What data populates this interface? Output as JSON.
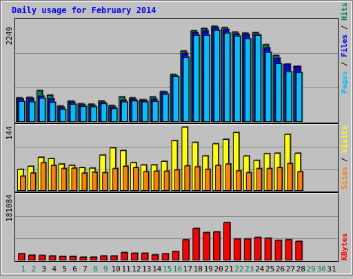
{
  "chart_data": [
    {
      "type": "bar",
      "title": "Daily usage for February 2014",
      "ymax_label": "2249",
      "series": [
        {
          "name": "Hits",
          "color": "#00805c"
        },
        {
          "name": "Files",
          "color": "#0000ff"
        },
        {
          "name": "Pages",
          "color": "#00c0ff"
        }
      ],
      "categories": [
        "1",
        "2",
        "3",
        "4",
        "5",
        "6",
        "7",
        "8",
        "9",
        "10",
        "11",
        "12",
        "13",
        "14",
        "15",
        "16",
        "17",
        "18",
        "19",
        "20",
        "21",
        "22",
        "23",
        "24",
        "25",
        "26",
        "27",
        "28"
      ],
      "hits": [
        540,
        550,
        700,
        600,
        360,
        470,
        410,
        400,
        470,
        370,
        560,
        540,
        500,
        560,
        680,
        1060,
        1580,
        2030,
        2080,
        2130,
        2100,
        2000,
        1980,
        1990,
        1720,
        1480,
        1280,
        1240
      ],
      "files": [
        520,
        530,
        580,
        520,
        330,
        450,
        390,
        370,
        440,
        340,
        490,
        510,
        490,
        510,
        670,
        1030,
        1530,
        1990,
        2030,
        2100,
        2060,
        1960,
        1950,
        1950,
        1650,
        1420,
        1290,
        1240
      ],
      "pages": [
        460,
        450,
        530,
        440,
        280,
        400,
        350,
        340,
        410,
        300,
        450,
        470,
        450,
        460,
        620,
        1010,
        1440,
        1930,
        1930,
        2040,
        1980,
        1910,
        1850,
        1930,
        1550,
        1300,
        1120,
        1100
      ]
    },
    {
      "type": "bar",
      "ymax_label": "144",
      "series": [
        {
          "name": "Visits",
          "color": "#ffff00"
        },
        {
          "name": "Sites",
          "color": "#ff8000"
        }
      ],
      "categories": [
        "1",
        "2",
        "3",
        "4",
        "5",
        "6",
        "7",
        "8",
        "9",
        "10",
        "11",
        "12",
        "13",
        "14",
        "15",
        "16",
        "17",
        "18",
        "19",
        "20",
        "21",
        "22",
        "23",
        "24",
        "25",
        "26",
        "27",
        "28"
      ],
      "visits": [
        48,
        55,
        75,
        72,
        60,
        57,
        52,
        51,
        80,
        96,
        90,
        63,
        58,
        58,
        66,
        112,
        142,
        108,
        78,
        105,
        115,
        130,
        78,
        68,
        83,
        84,
        126,
        84
      ],
      "sites": [
        33,
        40,
        63,
        57,
        50,
        51,
        40,
        42,
        41,
        50,
        55,
        52,
        43,
        44,
        44,
        47,
        56,
        54,
        48,
        57,
        60,
        45,
        41,
        50,
        50,
        52,
        61,
        43
      ]
    },
    {
      "type": "bar",
      "ymax_label": "181084",
      "series": [
        {
          "name": "KBytes",
          "color": "#ff0000"
        }
      ],
      "categories": [
        "1",
        "2",
        "3",
        "4",
        "5",
        "6",
        "7",
        "8",
        "9",
        "10",
        "11",
        "12",
        "13",
        "14",
        "15",
        "16",
        "17",
        "18",
        "19",
        "20",
        "21",
        "22",
        "23",
        "24",
        "25",
        "26",
        "27",
        "28"
      ],
      "values": [
        28000,
        22000,
        21000,
        19000,
        17000,
        17000,
        14000,
        14000,
        19000,
        19000,
        33000,
        30000,
        30000,
        24000,
        28000,
        37000,
        86000,
        132000,
        115000,
        118000,
        156000,
        89000,
        89000,
        95000,
        92000,
        83000,
        86000,
        79000
      ]
    }
  ],
  "x_labels": {
    "days": [
      "1",
      "2",
      "3",
      "4",
      "5",
      "6",
      "7",
      "8",
      "9",
      "10",
      "11",
      "12",
      "13",
      "14",
      "15",
      "16",
      "17",
      "18",
      "19",
      "20",
      "21",
      "22",
      "23",
      "24",
      "25",
      "26",
      "27",
      "28",
      "29",
      "30",
      "31"
    ],
    "weekend_days": [
      "1",
      "2",
      "8",
      "9",
      "15",
      "16",
      "22",
      "23",
      "29",
      "30"
    ],
    "weekday_color": "#000000",
    "weekend_color": "#00805c"
  },
  "colors": {
    "background": "#c0c0c0",
    "title": "#0000ff",
    "panel_border": "#000000",
    "gridline": "#808080",
    "separator": "#000000"
  }
}
